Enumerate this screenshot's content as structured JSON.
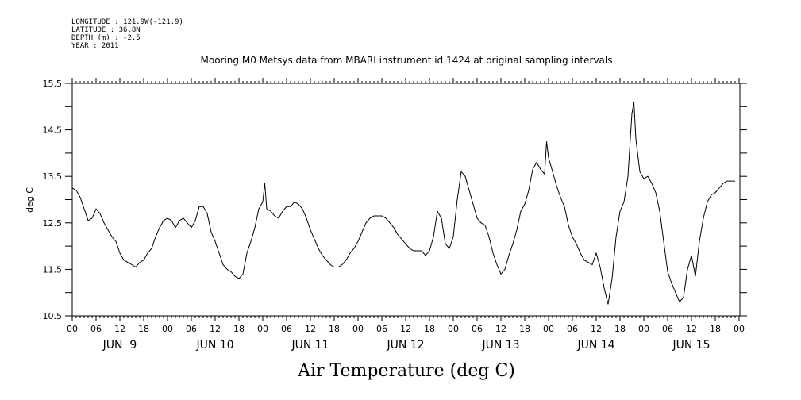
{
  "header": {
    "longitude": "LONGITUDE : 121.9W(-121.9)",
    "latitude": "LATITUDE : 36.8N",
    "depth": "DEPTH (m) : -2.5",
    "year": "YEAR : 2011"
  },
  "chart_data": {
    "type": "line",
    "title": "Mooring M0 Metsys data from MBARI instrument id 1424 at original sampling intervals",
    "xlabel": "Air Temperature (deg C)",
    "ylabel": "deg C",
    "ylim": [
      10.5,
      15.5
    ],
    "xlim_hours": [
      0,
      168
    ],
    "yticks": [
      "10.5",
      "11.5",
      "12.5",
      "13.5",
      "14.5",
      "15.5"
    ],
    "hour_ticks": [
      "00",
      "06",
      "12",
      "18",
      "00",
      "06",
      "12",
      "18",
      "00",
      "06",
      "12",
      "18",
      "00",
      "06",
      "12",
      "18",
      "00",
      "06",
      "12",
      "18",
      "00",
      "06",
      "12",
      "18",
      "00",
      "06",
      "12",
      "18",
      "00"
    ],
    "day_labels": [
      "JUN  9",
      "JUN 10",
      "JUN 11",
      "JUN 12",
      "JUN 13",
      "JUN 14",
      "JUN 15"
    ],
    "grid": false,
    "series": [
      {
        "color": "#000000",
        "points": [
          [
            0,
            13.25
          ],
          [
            1,
            13.2
          ],
          [
            2,
            13.05
          ],
          [
            3,
            12.8
          ],
          [
            4,
            12.55
          ],
          [
            5,
            12.6
          ],
          [
            6,
            12.8
          ],
          [
            7,
            12.7
          ],
          [
            8,
            12.5
          ],
          [
            9,
            12.35
          ],
          [
            10,
            12.2
          ],
          [
            11,
            12.1
          ],
          [
            12,
            11.85
          ],
          [
            13,
            11.7
          ],
          [
            14,
            11.65
          ],
          [
            15,
            11.6
          ],
          [
            16,
            11.55
          ],
          [
            17,
            11.65
          ],
          [
            18,
            11.7
          ],
          [
            19,
            11.85
          ],
          [
            20,
            11.95
          ],
          [
            21,
            12.2
          ],
          [
            22,
            12.4
          ],
          [
            23,
            12.55
          ],
          [
            24,
            12.6
          ],
          [
            25,
            12.55
          ],
          [
            26,
            12.4
          ],
          [
            27,
            12.55
          ],
          [
            28,
            12.6
          ],
          [
            29,
            12.5
          ],
          [
            30,
            12.4
          ],
          [
            31,
            12.55
          ],
          [
            32,
            12.85
          ],
          [
            33,
            12.85
          ],
          [
            34,
            12.7
          ],
          [
            35,
            12.3
          ],
          [
            36,
            12.1
          ],
          [
            37,
            11.85
          ],
          [
            38,
            11.6
          ],
          [
            39,
            11.5
          ],
          [
            40,
            11.45
          ],
          [
            41,
            11.35
          ],
          [
            42,
            11.3
          ],
          [
            43,
            11.4
          ],
          [
            44,
            11.85
          ],
          [
            45,
            12.1
          ],
          [
            46,
            12.4
          ],
          [
            47,
            12.8
          ],
          [
            48,
            12.95
          ],
          [
            48.5,
            13.35
          ],
          [
            49,
            12.8
          ],
          [
            50,
            12.75
          ],
          [
            51,
            12.65
          ],
          [
            52,
            12.6
          ],
          [
            53,
            12.75
          ],
          [
            54,
            12.85
          ],
          [
            55,
            12.85
          ],
          [
            56,
            12.95
          ],
          [
            57,
            12.9
          ],
          [
            58,
            12.8
          ],
          [
            59,
            12.6
          ],
          [
            60,
            12.35
          ],
          [
            61,
            12.15
          ],
          [
            62,
            11.95
          ],
          [
            63,
            11.8
          ],
          [
            64,
            11.7
          ],
          [
            65,
            11.6
          ],
          [
            66,
            11.55
          ],
          [
            67,
            11.55
          ],
          [
            68,
            11.6
          ],
          [
            69,
            11.7
          ],
          [
            70,
            11.85
          ],
          [
            71,
            11.95
          ],
          [
            72,
            12.1
          ],
          [
            73,
            12.3
          ],
          [
            74,
            12.5
          ],
          [
            75,
            12.6
          ],
          [
            76,
            12.65
          ],
          [
            77,
            12.65
          ],
          [
            78,
            12.65
          ],
          [
            79,
            12.6
          ],
          [
            80,
            12.5
          ],
          [
            81,
            12.4
          ],
          [
            82,
            12.25
          ],
          [
            83,
            12.15
          ],
          [
            84,
            12.05
          ],
          [
            85,
            11.95
          ],
          [
            86,
            11.9
          ],
          [
            87,
            11.9
          ],
          [
            88,
            11.9
          ],
          [
            89,
            11.8
          ],
          [
            90,
            11.9
          ],
          [
            91,
            12.2
          ],
          [
            92,
            12.75
          ],
          [
            93,
            12.6
          ],
          [
            94,
            12.05
          ],
          [
            95,
            11.95
          ],
          [
            96,
            12.2
          ],
          [
            97,
            13.0
          ],
          [
            98,
            13.6
          ],
          [
            99,
            13.5
          ],
          [
            100,
            13.2
          ],
          [
            101,
            12.9
          ],
          [
            102,
            12.6
          ],
          [
            103,
            12.5
          ],
          [
            104,
            12.45
          ],
          [
            105,
            12.2
          ],
          [
            106,
            11.85
          ],
          [
            107,
            11.6
          ],
          [
            108,
            11.4
          ],
          [
            109,
            11.5
          ],
          [
            110,
            11.8
          ],
          [
            111,
            12.05
          ],
          [
            112,
            12.35
          ],
          [
            113,
            12.75
          ],
          [
            114,
            12.9
          ],
          [
            115,
            13.2
          ],
          [
            116,
            13.65
          ],
          [
            117,
            13.8
          ],
          [
            118,
            13.65
          ],
          [
            119,
            13.55
          ],
          [
            119.5,
            14.25
          ],
          [
            120,
            13.9
          ],
          [
            121,
            13.6
          ],
          [
            122,
            13.3
          ],
          [
            123,
            13.05
          ],
          [
            124,
            12.85
          ],
          [
            125,
            12.45
          ],
          [
            126,
            12.2
          ],
          [
            127,
            12.05
          ],
          [
            128,
            11.85
          ],
          [
            129,
            11.7
          ],
          [
            130,
            11.65
          ],
          [
            131,
            11.6
          ],
          [
            132,
            11.85
          ],
          [
            133,
            11.55
          ],
          [
            134,
            11.1
          ],
          [
            135,
            10.75
          ],
          [
            136,
            11.3
          ],
          [
            137,
            12.2
          ],
          [
            138,
            12.75
          ],
          [
            139,
            12.95
          ],
          [
            140,
            13.5
          ],
          [
            141,
            14.85
          ],
          [
            141.5,
            15.1
          ],
          [
            142,
            14.3
          ],
          [
            143,
            13.6
          ],
          [
            144,
            13.45
          ],
          [
            145,
            13.5
          ],
          [
            146,
            13.35
          ],
          [
            147,
            13.15
          ],
          [
            148,
            12.75
          ],
          [
            149,
            12.1
          ],
          [
            150,
            11.45
          ],
          [
            151,
            11.2
          ],
          [
            152,
            11.0
          ],
          [
            153,
            10.8
          ],
          [
            154,
            10.9
          ],
          [
            155,
            11.5
          ],
          [
            156,
            11.8
          ],
          [
            157,
            11.35
          ],
          [
            158,
            12.1
          ],
          [
            159,
            12.6
          ],
          [
            160,
            12.95
          ],
          [
            161,
            13.1
          ],
          [
            162,
            13.15
          ],
          [
            163,
            13.25
          ],
          [
            164,
            13.35
          ],
          [
            165,
            13.4
          ],
          [
            166,
            13.4
          ],
          [
            167,
            13.4
          ]
        ]
      }
    ]
  }
}
